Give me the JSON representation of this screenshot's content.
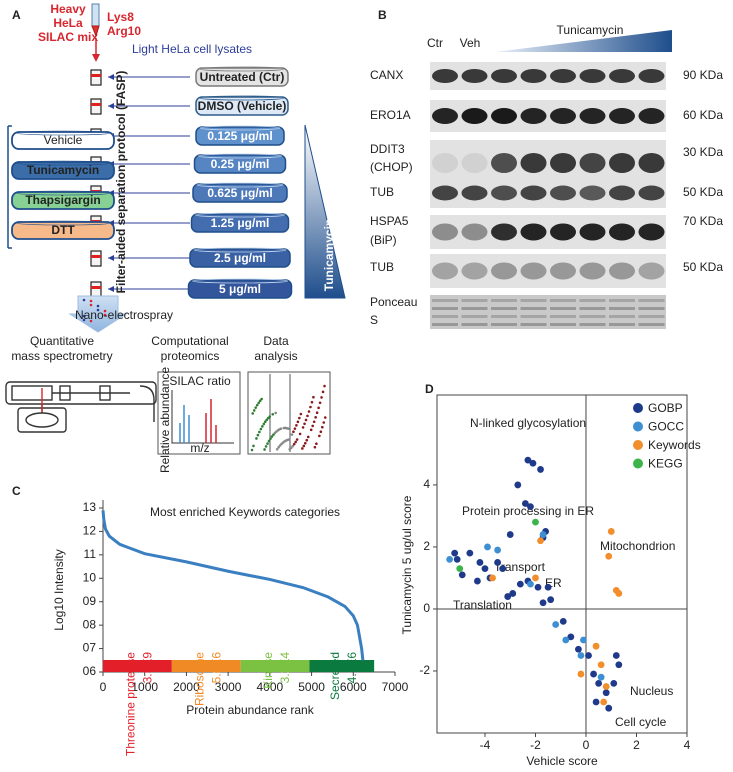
{
  "panel_a": {
    "letter": "A",
    "heavy_mix": [
      "Heavy",
      "HeLa",
      "SILAC mix"
    ],
    "amino_acids": [
      "Lys8",
      "Arg10"
    ],
    "light_lysates": "Light HeLa cell lysates",
    "fasp": "Filter-aided separation protocol (FASP)",
    "samples": [
      "Untreated (Ctr)",
      "DMSO (Vehicle)",
      "0.125 μg/ml",
      "0.25 μg/ml",
      "0.625 μg/ml",
      "1.25 μg/ml",
      "2.5 μg/ml",
      "5 μg/ml"
    ],
    "gradient_label": "Tunicamycin",
    "treatments": [
      "Vehicle",
      "Tunicamycin",
      "Thapsigargin",
      "DTT"
    ],
    "electrospray": "Nano-electrospray",
    "steps": [
      [
        "Quantitative",
        "mass spectrometry"
      ],
      [
        "Computational",
        "proteomics"
      ],
      [
        "Data",
        "analysis"
      ]
    ],
    "inset_silac": {
      "title": "SILAC ratio",
      "y_label": "Relative abundance",
      "x_label": "m/z"
    }
  },
  "panel_b": {
    "letter": "B",
    "lanes_header": [
      "Ctr",
      "Veh"
    ],
    "gradient_label": "Tunicamycin",
    "rows": [
      {
        "label": [
          "CANX"
        ],
        "size": "90 KDa"
      },
      {
        "label": [
          "ERO1A"
        ],
        "size": "60 KDa"
      },
      {
        "label": [
          "DDIT3",
          "(CHOP)"
        ],
        "size": "30 KDa"
      },
      {
        "label": [
          "TUB"
        ],
        "size": "50 KDa"
      },
      {
        "label": [
          "HSPA5",
          "(BiP)"
        ],
        "size": "70 KDa"
      },
      {
        "label": [
          "TUB"
        ],
        "size": "50 KDa"
      },
      {
        "label": [
          "Ponceau",
          "S"
        ]
      }
    ]
  },
  "chart_data": [
    {
      "type": "line",
      "letter": "C",
      "title": "Most enriched Keywords categories",
      "x_label": "Protein abundance rank",
      "y_label": "Log10 Intensity",
      "x": [
        0,
        20,
        60,
        150,
        400,
        1000,
        2000,
        3000,
        4000,
        4800,
        5400,
        5800,
        6000,
        6100,
        6150,
        6200,
        6230
      ],
      "values": [
        12.9,
        12.5,
        12.1,
        11.8,
        11.45,
        11.05,
        10.7,
        10.3,
        9.95,
        9.6,
        9.2,
        8.8,
        8.4,
        8.0,
        7.5,
        7.0,
        6.5
      ],
      "color": "#3a7fc1",
      "xlim": [
        0,
        7000
      ],
      "xticks": [
        0,
        1000,
        2000,
        3000,
        4000,
        5000,
        6000,
        7000
      ],
      "ylim": [
        6,
        13
      ],
      "yticks": [
        13,
        12,
        11,
        10,
        {
          "value": 9,
          "label": "09"
        },
        {
          "value": 8,
          "label": "08"
        },
        {
          "value": 7,
          "label": "07"
        },
        {
          "value": 6,
          "label": "06"
        }
      ],
      "bands": [
        {
          "name": "Threonine protease",
          "value_label": "3.5E9",
          "start": 0,
          "end": 1650,
          "color": "#e3202a"
        },
        {
          "name": "Ribosome",
          "value_label": "5.8E6",
          "start": 1650,
          "end": 3300,
          "color": "#f08a24"
        },
        {
          "name": "Kinase",
          "value_label": "3.2E4",
          "start": 3300,
          "end": 4950,
          "color": "#7cc242"
        },
        {
          "name": "Secreted",
          "value_label": "4.1E6",
          "start": 4950,
          "end": 6500,
          "color": "#0b7a3e"
        }
      ]
    },
    {
      "type": "scatter",
      "letter": "D",
      "x_label": "Vehicle score",
      "y_label": "Tunicamycin 5 ug/ul  score",
      "xlim": [
        -5.9,
        4.0
      ],
      "xticks": [
        -4,
        -2,
        0,
        2,
        4
      ],
      "ylim": [
        -4.0,
        6.9
      ],
      "yticks": [
        -2,
        0,
        2,
        4
      ],
      "legend": "upper right",
      "series": [
        {
          "name": "GOBP",
          "color": "#1f3a8a",
          "x": [
            -2.3,
            -2.1,
            -1.8,
            -2.7,
            -2.4,
            -2.2,
            -1.6,
            -1.7,
            -3.0,
            -5.2,
            -5.1,
            -4.6,
            -4.2,
            -4.0,
            -3.5,
            -3.3,
            -3.8,
            -4.3,
            -4.9,
            -2.6,
            -2.3,
            -1.9,
            -1.5,
            -2.9,
            -3.1,
            -1.4,
            -1.7,
            -0.9,
            -0.6,
            -0.3,
            0.1,
            0.3,
            0.5,
            0.8,
            1.1,
            1.3,
            1.2,
            0.9,
            0.4
          ],
          "values": [
            4.8,
            4.7,
            4.5,
            4.0,
            3.4,
            3.3,
            2.5,
            2.3,
            2.4,
            1.8,
            1.6,
            1.8,
            1.5,
            1.3,
            1.5,
            1.3,
            1.0,
            0.9,
            1.1,
            0.8,
            0.9,
            0.7,
            0.7,
            0.5,
            0.4,
            0.3,
            0.2,
            -0.4,
            -0.9,
            -1.3,
            -1.5,
            -2.1,
            -2.4,
            -2.7,
            -2.4,
            -1.8,
            -1.5,
            -3.2,
            -3.0
          ]
        },
        {
          "name": "GOCC",
          "color": "#3d8fd1",
          "x": [
            -5.4,
            -3.9,
            -1.7,
            -3.5,
            -2.2,
            -1.2,
            -0.8,
            -0.2,
            -0.1,
            0.6
          ],
          "values": [
            1.6,
            2.0,
            2.4,
            1.9,
            0.8,
            -0.5,
            -1.0,
            -1.5,
            -1.0,
            -2.2
          ]
        },
        {
          "name": "Keywords",
          "color": "#f28e2b",
          "x": [
            1.0,
            0.9,
            1.2,
            1.3,
            -1.8,
            -2.0,
            -3.7,
            0.4,
            0.6,
            0.7,
            0.8,
            -0.2
          ],
          "values": [
            2.5,
            1.7,
            0.6,
            0.5,
            2.2,
            1.0,
            1.0,
            -1.2,
            -1.8,
            -3.0,
            -2.5,
            -2.1
          ]
        },
        {
          "name": "KEGG",
          "color": "#3cb44b",
          "x": [
            -2.0,
            -5.0
          ],
          "values": [
            2.8,
            1.3
          ]
        }
      ],
      "annotations": [
        "N-linked glycosylation",
        "Protein processing in ER",
        "Mitochondrion",
        "Transport",
        "ER",
        "Translation",
        "Nucleus",
        "Cell cycle"
      ]
    }
  ]
}
